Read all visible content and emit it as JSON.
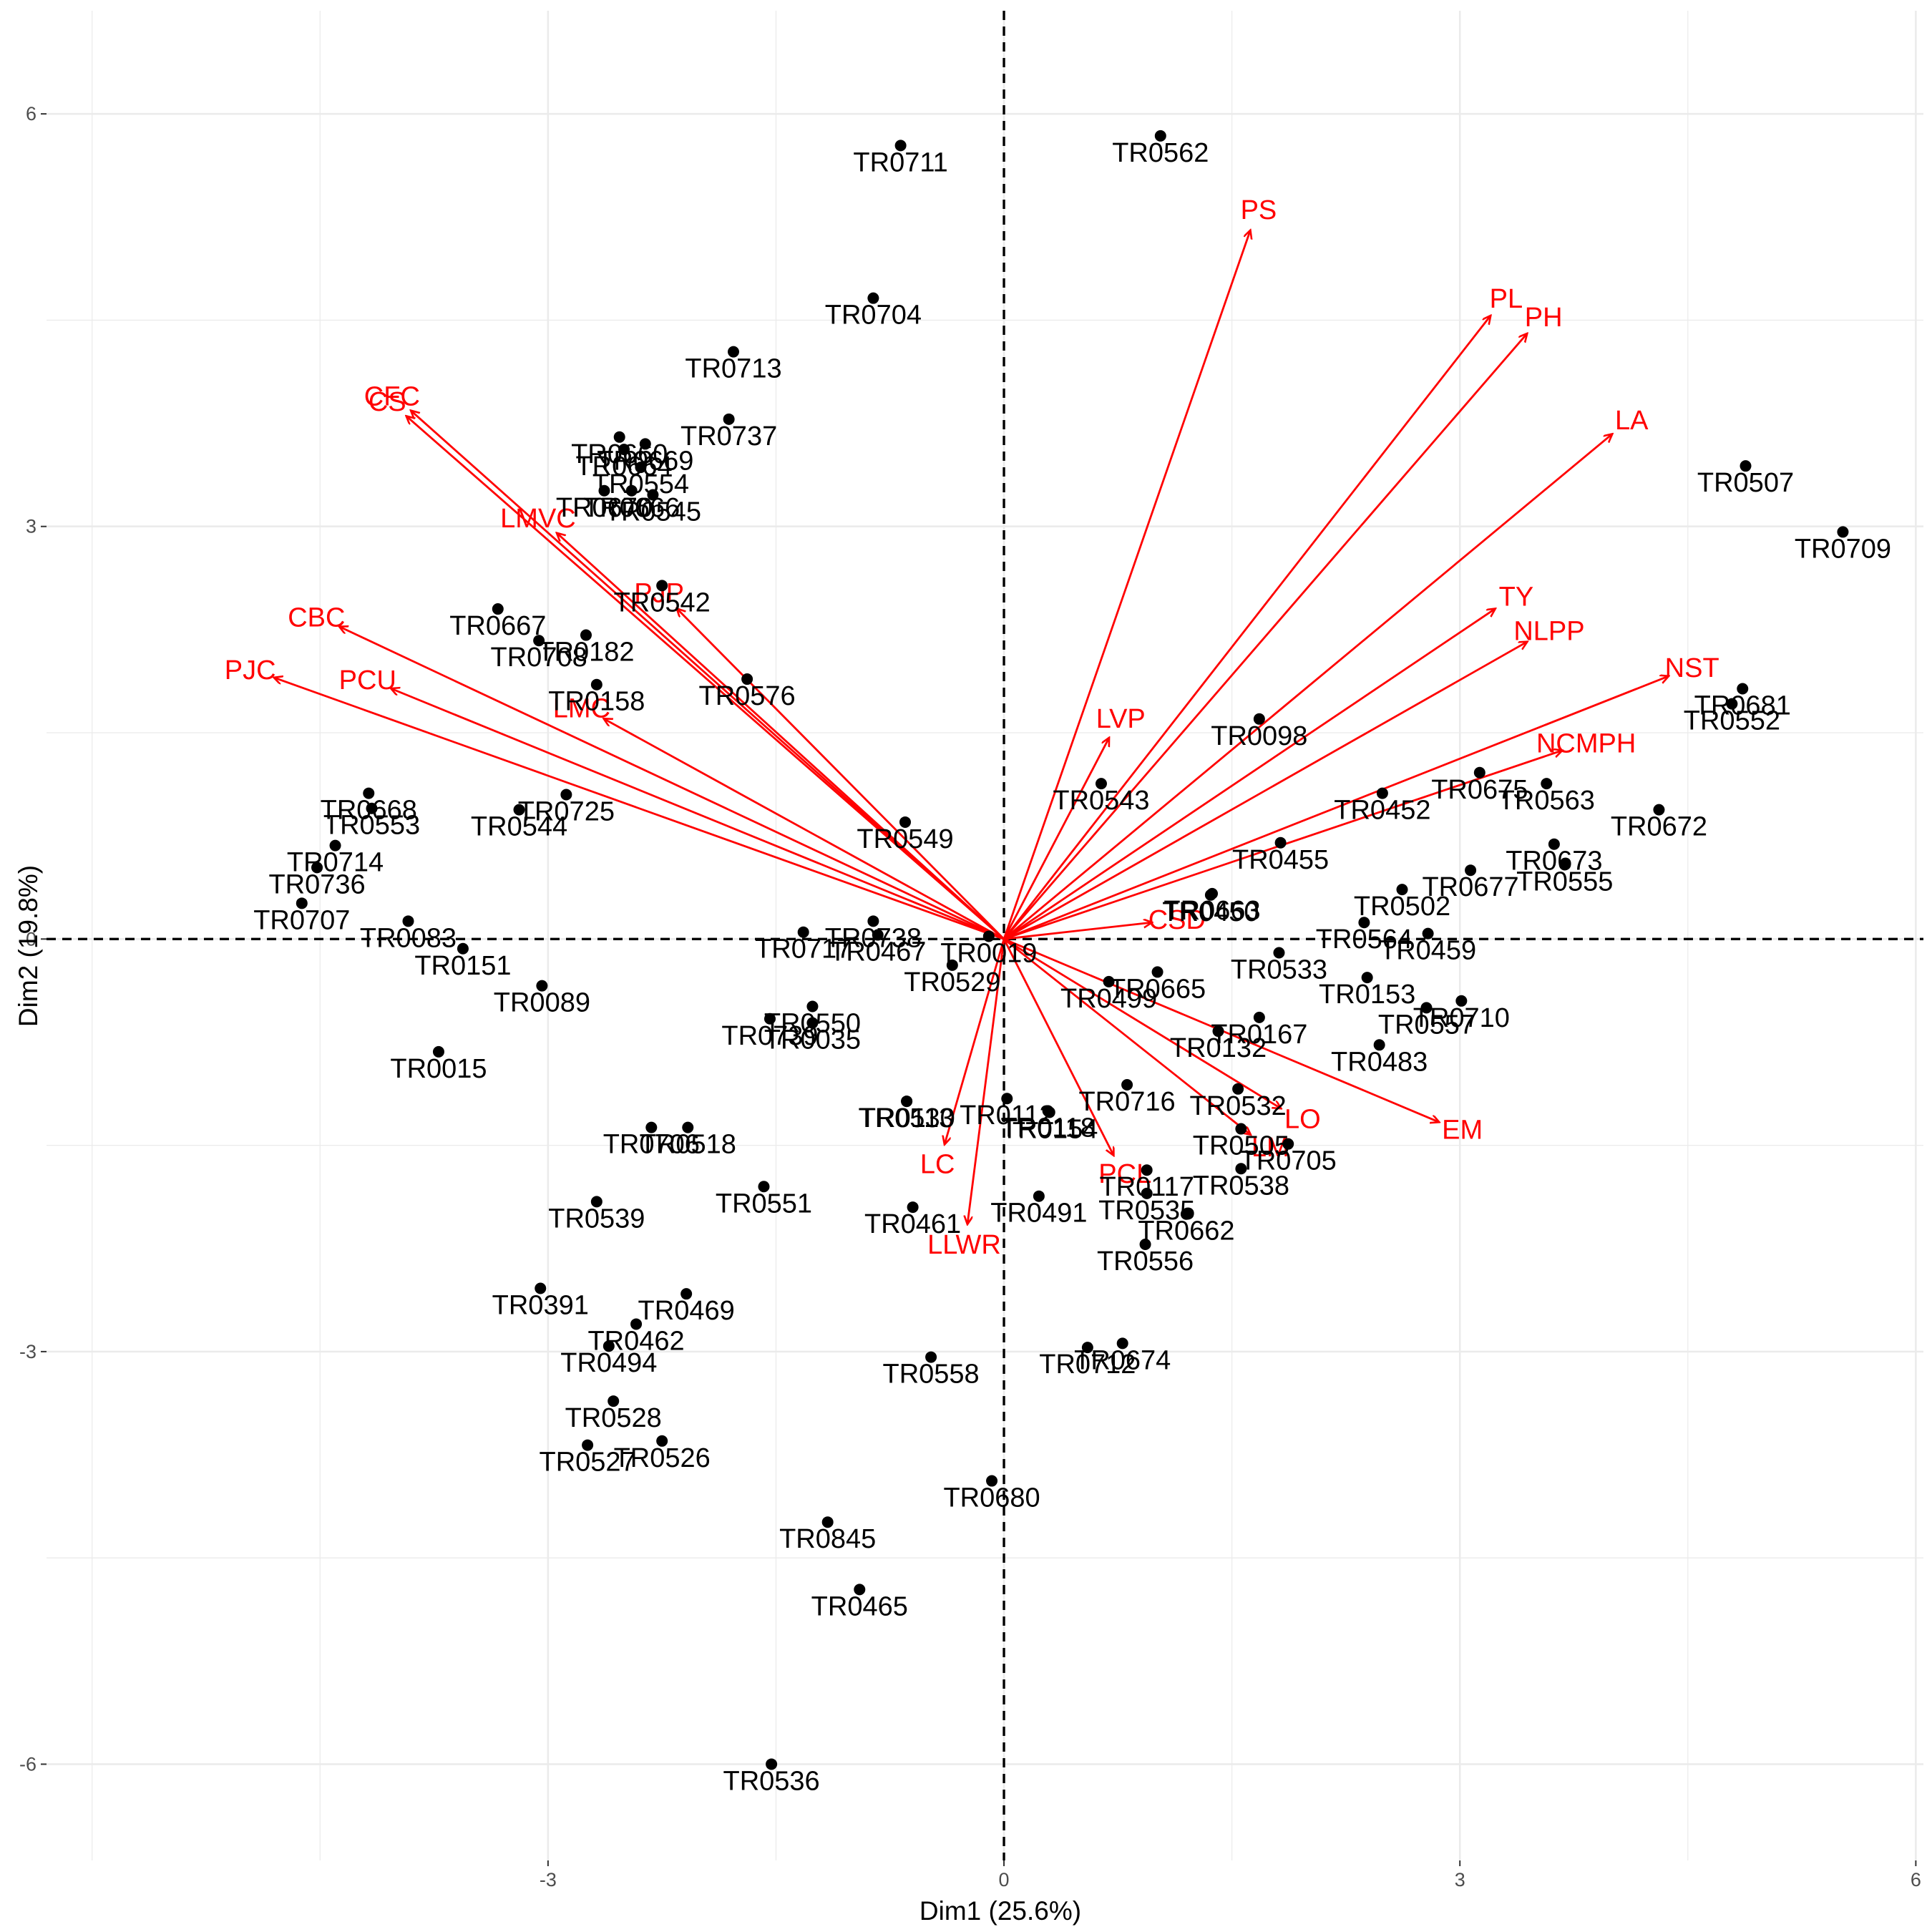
{
  "chart_data": {
    "type": "scatter",
    "subtype": "pca-biplot",
    "title": "",
    "xlabel": "Dim1 (25.6%)",
    "ylabel": "Dim2 (19.8%)",
    "xlim": [
      -6.3,
      6.05
    ],
    "ylim": [
      -6.7,
      6.75
    ],
    "x_ticks": [
      -3,
      0,
      3,
      6
    ],
    "y_ticks": [
      -6,
      -3,
      0,
      3,
      6
    ],
    "grid": true,
    "legend": "none",
    "colors": {
      "points": "#000000",
      "variables": "#ff0000",
      "grid": "#ebebeb",
      "reference_lines": "#000000"
    },
    "individuals": [
      {
        "name": "TR0711",
        "x": -0.68,
        "y": 5.77
      },
      {
        "name": "TR0562",
        "x": 1.03,
        "y": 5.84
      },
      {
        "name": "TR0704",
        "x": -0.86,
        "y": 4.66
      },
      {
        "name": "TR0713",
        "x": -1.78,
        "y": 4.27
      },
      {
        "name": "TR0737",
        "x": -1.81,
        "y": 3.78
      },
      {
        "name": "TR0660",
        "x": -2.53,
        "y": 3.65
      },
      {
        "name": "TR0664",
        "x": -2.5,
        "y": 3.56
      },
      {
        "name": "TR0669",
        "x": -2.36,
        "y": 3.6
      },
      {
        "name": "TR0554",
        "x": -2.39,
        "y": 3.43
      },
      {
        "name": "TR0545",
        "x": -2.31,
        "y": 3.23
      },
      {
        "name": "TR0670",
        "x": -2.63,
        "y": 3.26
      },
      {
        "name": "TR0666",
        "x": -2.45,
        "y": 3.26
      },
      {
        "name": "TR0542",
        "x": -2.25,
        "y": 2.57
      },
      {
        "name": "TR0667",
        "x": -3.33,
        "y": 2.4
      },
      {
        "name": "TR0182",
        "x": -2.75,
        "y": 2.21
      },
      {
        "name": "TR0708",
        "x": -3.06,
        "y": 2.17
      },
      {
        "name": "TR0576",
        "x": -1.69,
        "y": 1.89
      },
      {
        "name": "TR0158",
        "x": -2.68,
        "y": 1.85
      },
      {
        "name": "TR0725",
        "x": -2.88,
        "y": 1.05
      },
      {
        "name": "TR0544",
        "x": -3.19,
        "y": 0.94
      },
      {
        "name": "TR0668",
        "x": -4.18,
        "y": 1.06
      },
      {
        "name": "TR0553",
        "x": -4.16,
        "y": 0.95
      },
      {
        "name": "TR0714",
        "x": -4.4,
        "y": 0.68
      },
      {
        "name": "TR0736",
        "x": -4.52,
        "y": 0.52
      },
      {
        "name": "TR0707",
        "x": -4.62,
        "y": 0.26
      },
      {
        "name": "TR0083",
        "x": -3.92,
        "y": 0.13
      },
      {
        "name": "TR0549",
        "x": -0.65,
        "y": 0.85
      },
      {
        "name": "TR0738",
        "x": -0.86,
        "y": 0.13
      },
      {
        "name": "TR0019",
        "x": -0.1,
        "y": 0.02
      },
      {
        "name": "TR0717",
        "x": -1.32,
        "y": 0.05
      },
      {
        "name": "TR0467",
        "x": -0.83,
        "y": 0.03
      },
      {
        "name": "TR0151",
        "x": -3.56,
        "y": -0.07
      },
      {
        "name": "TR0089",
        "x": -3.04,
        "y": -0.34
      },
      {
        "name": "TR0529",
        "x": -0.34,
        "y": -0.19
      },
      {
        "name": "TR0550",
        "x": -1.26,
        "y": -0.49
      },
      {
        "name": "TR0739",
        "x": -1.54,
        "y": -0.58
      },
      {
        "name": "TR0035",
        "x": -1.26,
        "y": -0.61
      },
      {
        "name": "TR0015",
        "x": -3.72,
        "y": -0.82
      },
      {
        "name": "TR0543",
        "x": 0.64,
        "y": 1.13
      },
      {
        "name": "TR0098",
        "x": 1.68,
        "y": 1.6
      },
      {
        "name": "TR0450",
        "x": 1.36,
        "y": 0.32
      },
      {
        "name": "TR0455",
        "x": 1.82,
        "y": 0.7
      },
      {
        "name": "TR0663",
        "x": 1.37,
        "y": 0.33
      },
      {
        "name": "TR0452",
        "x": 2.49,
        "y": 1.06
      },
      {
        "name": "TR0675",
        "x": 3.13,
        "y": 1.21
      },
      {
        "name": "TR0563",
        "x": 3.57,
        "y": 1.13
      },
      {
        "name": "TR0681",
        "x": 4.86,
        "y": 1.82
      },
      {
        "name": "TR0552",
        "x": 4.79,
        "y": 1.71
      },
      {
        "name": "TR0672",
        "x": 4.31,
        "y": 0.94
      },
      {
        "name": "TR0677",
        "x": 3.07,
        "y": 0.5
      },
      {
        "name": "TR0673",
        "x": 3.62,
        "y": 0.69
      },
      {
        "name": "TR0555",
        "x": 3.69,
        "y": 0.54
      },
      {
        "name": "TR0502",
        "x": 2.62,
        "y": 0.36
      },
      {
        "name": "TR0564",
        "x": 2.37,
        "y": 0.12
      },
      {
        "name": "TR0459",
        "x": 2.79,
        "y": 0.04
      },
      {
        "name": "TR0665",
        "x": 1.01,
        "y": -0.24
      },
      {
        "name": "TR0533",
        "x": 1.81,
        "y": -0.1
      },
      {
        "name": "TR0153",
        "x": 2.39,
        "y": -0.28
      },
      {
        "name": "TR0710",
        "x": 3.01,
        "y": -0.45
      },
      {
        "name": "TR0557",
        "x": 2.78,
        "y": -0.5
      },
      {
        "name": "TR0499",
        "x": 0.69,
        "y": -0.31
      },
      {
        "name": "TR0132",
        "x": 1.41,
        "y": -0.67
      },
      {
        "name": "TR0167",
        "x": 1.68,
        "y": -0.57
      },
      {
        "name": "TR0716",
        "x": 0.81,
        "y": -1.06
      },
      {
        "name": "TR0483",
        "x": 2.47,
        "y": -0.77
      },
      {
        "name": "TR0112",
        "x": 0.02,
        "y": -1.16
      },
      {
        "name": "TR0113",
        "x": -0.64,
        "y": -1.18
      },
      {
        "name": "TR0532",
        "x": 1.54,
        "y": -1.09
      },
      {
        "name": "TR0705",
        "x": 1.87,
        "y": -1.49
      },
      {
        "name": "TR0118",
        "x": 0.29,
        "y": -1.25
      },
      {
        "name": "TR0154",
        "x": 0.3,
        "y": -1.26
      },
      {
        "name": "TR0505",
        "x": 1.56,
        "y": -1.38
      },
      {
        "name": "TR0538",
        "x": 1.56,
        "y": -1.67
      },
      {
        "name": "TR0530",
        "x": -0.64,
        "y": -1.18
      },
      {
        "name": "TR0117",
        "x": 0.94,
        "y": -1.68
      },
      {
        "name": "TR0491",
        "x": 0.23,
        "y": -1.87
      },
      {
        "name": "TR0535",
        "x": 0.94,
        "y": -1.85
      },
      {
        "name": "TR0662",
        "x": 1.2,
        "y": -2.0
      },
      {
        "name": "TR0556",
        "x": 0.93,
        "y": -2.22
      },
      {
        "name": "TR0461",
        "x": -0.6,
        "y": -1.95
      },
      {
        "name": "TR0518",
        "x": -2.08,
        "y": -1.37
      },
      {
        "name": "TR0706",
        "x": -2.32,
        "y": -1.37
      },
      {
        "name": "TR0551",
        "x": -1.58,
        "y": -1.8
      },
      {
        "name": "TR0539",
        "x": -2.68,
        "y": -1.91
      },
      {
        "name": "TR0391",
        "x": -3.05,
        "y": -2.54
      },
      {
        "name": "TR0469",
        "x": -2.09,
        "y": -2.58
      },
      {
        "name": "TR0462",
        "x": -2.42,
        "y": -2.8
      },
      {
        "name": "TR0494",
        "x": -2.6,
        "y": -2.96
      },
      {
        "name": "TR0528",
        "x": -2.57,
        "y": -3.36
      },
      {
        "name": "TR0527",
        "x": -2.74,
        "y": -3.68
      },
      {
        "name": "TR0526",
        "x": -2.25,
        "y": -3.65
      },
      {
        "name": "TR0712",
        "x": 0.55,
        "y": -2.97
      },
      {
        "name": "TR0674",
        "x": 0.78,
        "y": -2.94
      },
      {
        "name": "TR0558",
        "x": -0.48,
        "y": -3.04
      },
      {
        "name": "TR0845",
        "x": -1.16,
        "y": -4.24
      },
      {
        "name": "TR0680",
        "x": -0.08,
        "y": -3.94
      },
      {
        "name": "TR0465",
        "x": -0.95,
        "y": -4.73
      },
      {
        "name": "TR0536",
        "x": -1.53,
        "y": -6.0
      },
      {
        "name": "TR0507",
        "x": 4.88,
        "y": 3.44
      },
      {
        "name": "TR0709",
        "x": 5.52,
        "y": 2.96
      }
    ],
    "variables": [
      {
        "name": "PS",
        "x": 1.62,
        "y": 5.15
      },
      {
        "name": "PL",
        "x": 3.2,
        "y": 4.53
      },
      {
        "name": "PH",
        "x": 3.44,
        "y": 4.4
      },
      {
        "name": "LA",
        "x": 4.0,
        "y": 3.67
      },
      {
        "name": "TY",
        "x": 3.23,
        "y": 2.4
      },
      {
        "name": "NLPP",
        "x": 3.44,
        "y": 2.16
      },
      {
        "name": "NST",
        "x": 4.37,
        "y": 1.91
      },
      {
        "name": "NCMPH",
        "x": 3.67,
        "y": 1.37
      },
      {
        "name": "LVP",
        "x": 0.69,
        "y": 1.46
      },
      {
        "name": "CSD",
        "x": 0.97,
        "y": 0.12
      },
      {
        "name": "EM",
        "x": 2.86,
        "y": -1.33
      },
      {
        "name": "LO",
        "x": 1.82,
        "y": -1.23
      },
      {
        "name": "LM",
        "x": 1.62,
        "y": -1.42
      },
      {
        "name": "PCL",
        "x": 0.72,
        "y": -1.57
      },
      {
        "name": "LC",
        "x": -0.39,
        "y": -1.49
      },
      {
        "name": "LLWR",
        "x": -0.24,
        "y": -2.07
      },
      {
        "name": "CFC",
        "x": -3.9,
        "y": 3.84
      },
      {
        "name": "CS",
        "x": -3.93,
        "y": 3.8
      },
      {
        "name": "LMVC",
        "x": -2.94,
        "y": 2.95
      },
      {
        "name": "PJP",
        "x": -2.15,
        "y": 2.4
      },
      {
        "name": "LMC",
        "x": -2.63,
        "y": 1.6
      },
      {
        "name": "CBC",
        "x": -4.37,
        "y": 2.27
      },
      {
        "name": "PCU",
        "x": -4.03,
        "y": 1.82
      },
      {
        "name": "PJC",
        "x": -4.8,
        "y": 1.9
      }
    ]
  }
}
